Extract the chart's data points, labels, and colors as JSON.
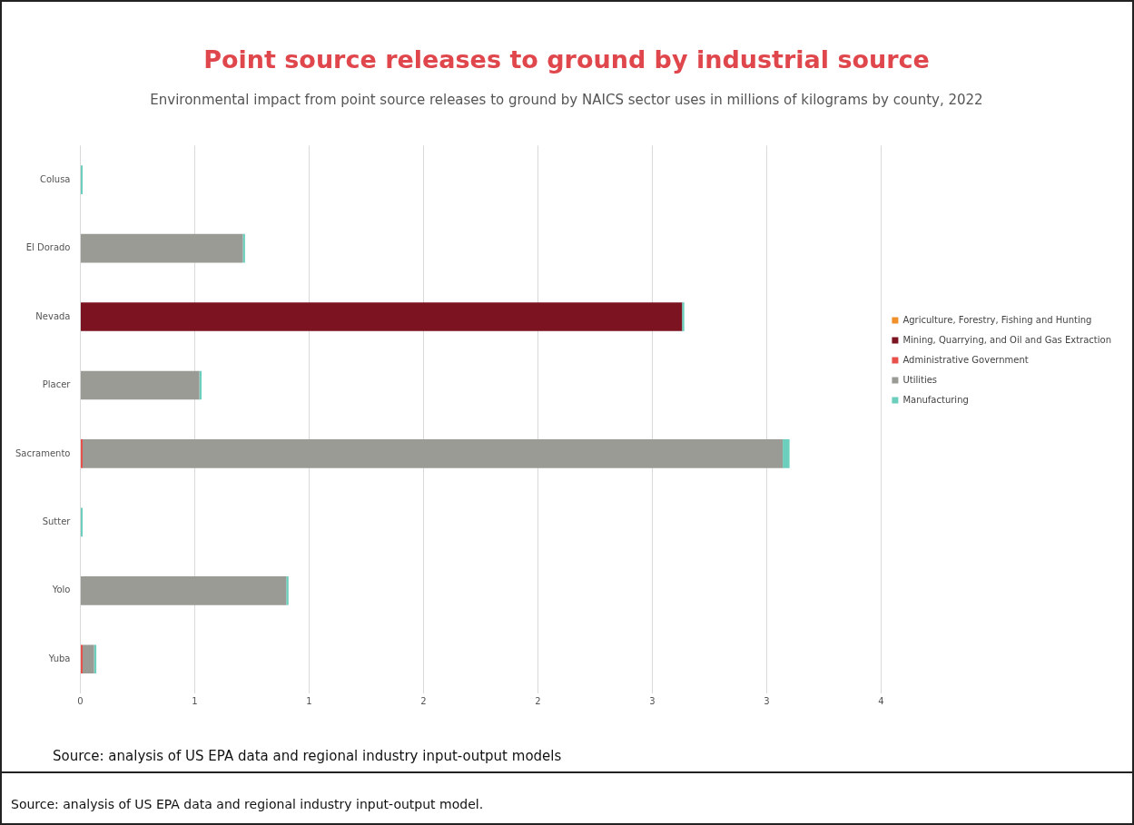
{
  "chart_data": {
    "type": "bar",
    "orientation": "horizontal",
    "stacked": true,
    "title": "Point source releases to ground by industrial source",
    "subtitle": "Environmental impact from point source releases to ground by NAICS sector uses in millions of kilograms by county, 2022",
    "categories": [
      "Colusa",
      "El Dorado",
      "Nevada",
      "Placer",
      "Sacramento",
      "Sutter",
      "Yolo",
      "Yuba"
    ],
    "series": [
      {
        "name": "Agriculture, Forestry, Fishing and Hunting",
        "color": "#f0902a",
        "values": [
          0,
          0,
          0,
          0,
          0,
          0,
          0,
          0
        ]
      },
      {
        "name": "Mining, Quarrying, and Oil and Gas Extraction",
        "color": "#7b1420",
        "values": [
          0,
          0,
          2.63,
          0,
          0,
          0,
          0,
          0
        ]
      },
      {
        "name": "Administrative Government",
        "color": "#e8504a",
        "values": [
          0,
          0,
          0,
          0,
          0.01,
          0,
          0,
          0.01
        ]
      },
      {
        "name": "Utilities",
        "color": "#9b9b95",
        "values": [
          0,
          0.71,
          0,
          0.52,
          3.06,
          0,
          0.9,
          0.05
        ]
      },
      {
        "name": "Manufacturing",
        "color": "#6ccfbd",
        "values": [
          0.01,
          0.01,
          0.01,
          0.01,
          0.03,
          0.01,
          0.01,
          0.01
        ]
      }
    ],
    "xlim": [
      0,
      3.5
    ],
    "xticks": [
      0,
      {
        "value": 0.5,
        "label": "1"
      },
      1,
      {
        "value": 1.5,
        "label": "2"
      },
      2,
      {
        "value": 2.5,
        "label": "3"
      },
      3,
      {
        "value": 3.5,
        "label": "4"
      }
    ],
    "grid": "x",
    "legend": "right",
    "annotations": [
      "Source: analysis of US EPA data and regional industry input-output models",
      "Source: analysis of US EPA data and regional industry input-output model."
    ]
  }
}
